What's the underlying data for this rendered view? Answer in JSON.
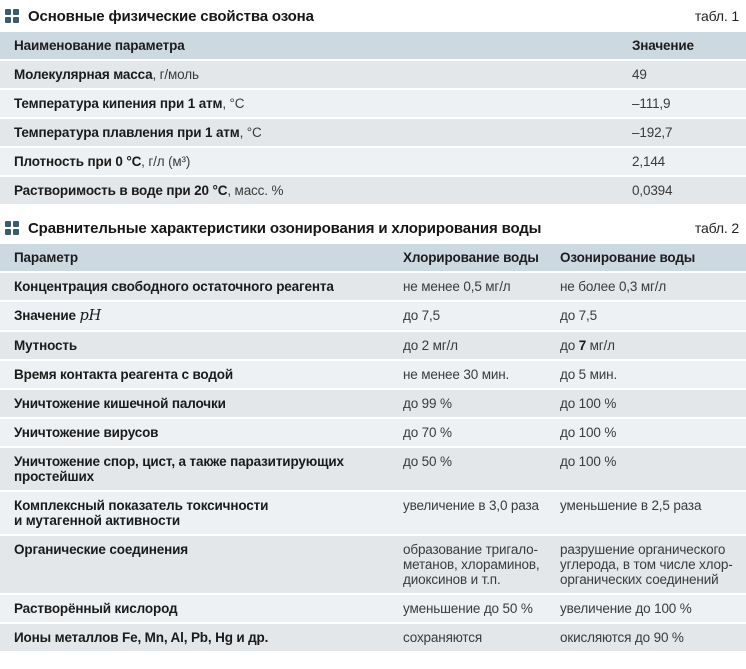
{
  "colors": {
    "header_bg": "#cdd9e1",
    "row_odd": "#e3e7ea",
    "row_even": "#eef1f3",
    "marker_icon": "#3d5b6e",
    "text": "#1c1c1c"
  },
  "table1": {
    "marker_icon": "grid-dots-icon",
    "title": "Основные физические свойства озона",
    "tag": "табл. 1",
    "headers": {
      "param": "Наименование параметра",
      "value": "Значение"
    },
    "rows": [
      {
        "label_bold": "Молекулярная масса",
        "label_rest": ", г/моль",
        "value": "49"
      },
      {
        "label_bold": "Температура кипения при 1 атм",
        "label_rest": ", °С",
        "value": "–111,9"
      },
      {
        "label_bold": "Температура плавления при 1 атм",
        "label_rest": ", °С",
        "value": "–192,7"
      },
      {
        "label_bold": "Плотность при 0 °С",
        "label_rest": ", г/л (м³)",
        "value": "2,144"
      },
      {
        "label_bold": "Растворимость в воде при 20 °С",
        "label_rest": ", масс. %",
        "value": "0,0394"
      }
    ]
  },
  "table2": {
    "marker_icon": "grid-dots-icon",
    "title": "Сравнительные характеристики озонирования и хлорирования воды",
    "tag": "табл. 2",
    "headers": {
      "param": "Параметр",
      "chlorine": "Хлорирование воды",
      "ozone": "Озонирование воды"
    },
    "rows": [
      {
        "param": "Концентрация свободного остаточного реагента",
        "chlorine": "не менее 0,5 мг/л",
        "ozone": "не более 0,3 мг/л"
      },
      {
        "param_prefix": "Значение ",
        "param_math": "pH",
        "chlorine": "до 7,5",
        "ozone": "до 7,5"
      },
      {
        "param": "Мутность",
        "chlorine": "до 2 мг/л",
        "ozone_pre": "до ",
        "ozone_bold": "7",
        "ozone_post": " мг/л"
      },
      {
        "param": "Время контакта реагента с водой",
        "chlorine": "не менее 30 мин.",
        "ozone": "до 5 мин."
      },
      {
        "param": "Уничтожение кишечной палочки",
        "chlorine": "до 99 %",
        "ozone": "до 100 %"
      },
      {
        "param": "Уничтожение вирусов",
        "chlorine": "до 70 %",
        "ozone": "до 100 %"
      },
      {
        "param": "Уничтожение спор, цист, а также паразитирующих\nпростейших",
        "chlorine": "до 50 %",
        "ozone": "до 100 %"
      },
      {
        "param": "Комплексный показатель токсичности\nи мутагенной активности",
        "chlorine": "увеличение в 3,0 раза",
        "ozone": "уменьшение в 2,5 раза"
      },
      {
        "param": "Органические соединения",
        "chlorine": "образование тригало-\nметанов, хлораминов,\nдиоксинов и т.п.",
        "ozone": "разрушение органического\nуглерода, в том числе хлор-\nорганических соединений"
      },
      {
        "param": "Растворённый кислород",
        "chlorine": "уменьшение до 50 %",
        "ozone": "увеличение до 100 %"
      },
      {
        "param": "Ионы металлов Fe, Mn, Al, Pb, Hg и др.",
        "chlorine": "сохраняются",
        "ozone": "окисляются до 90 %"
      }
    ]
  }
}
